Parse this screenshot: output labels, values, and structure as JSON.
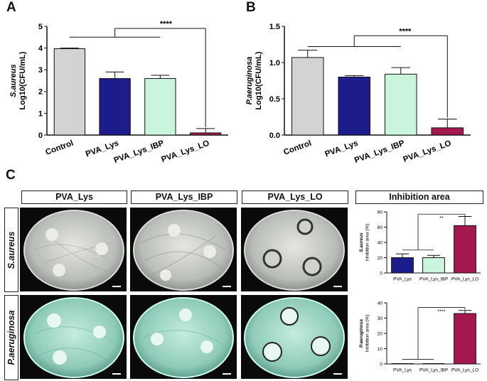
{
  "panels": {
    "a": "A",
    "b": "B",
    "c": "C"
  },
  "significance": {
    "a": "****",
    "b": "****",
    "c_top": "**",
    "c_bottom": "****"
  },
  "figure_c": {
    "columns": [
      "PVA_Lys",
      "PVA_Lys_IBP",
      "PVA_Lys_LO"
    ],
    "inhibition_title": "Inhibition area",
    "rows": [
      "S.aureus",
      "P.aeruginosa"
    ]
  },
  "colors": {
    "control": "#d3d3d3",
    "pva_lys": "#1c1c8c",
    "pva_lys_ibp": "#c8f5dc",
    "pva_lys_lo": "#a3194f",
    "plate_s_aureus": "#c7cbc7",
    "plate_p_aeruginosa": "#9ed4c4"
  },
  "chart_data": [
    {
      "type": "bar",
      "panel": "A",
      "categories": [
        "Control",
        "PVA_Lys",
        "PVA_Lys_IBP",
        "PVA_Lys_LO"
      ],
      "values": [
        3.97,
        2.6,
        2.6,
        0.1
      ],
      "errors": [
        0.03,
        0.3,
        0.15,
        0.2
      ],
      "ylabel_italic": "S.aureus",
      "ylabel": "Log10(CFU/mL)",
      "ylim": [
        0,
        5
      ],
      "yticks": [
        "0",
        "1",
        "2",
        "3",
        "4",
        "5"
      ],
      "tick_values": [
        0,
        1,
        2,
        3,
        4,
        5
      ]
    },
    {
      "type": "bar",
      "panel": "B",
      "categories": [
        "Control",
        "PVA_Lys",
        "PVA_Lys_IBP",
        "PVA_Lys_LO"
      ],
      "values": [
        1.07,
        0.8,
        0.84,
        0.1
      ],
      "errors": [
        0.1,
        0.02,
        0.09,
        0.12
      ],
      "ylabel_italic": "P.aeruginosa",
      "ylabel": "Log10(CFU/mL)",
      "ylim": [
        0,
        1.5
      ],
      "yticks": [
        "0.0",
        "0.5",
        "1.0",
        "1.5"
      ],
      "tick_values": [
        0,
        0.5,
        1,
        1.5
      ]
    },
    {
      "type": "bar",
      "panel": "C-top",
      "categories": [
        "PVA_Lys",
        "PVA_Lys_IBP",
        "PVA_Lys_LO"
      ],
      "values": [
        20,
        20,
        62
      ],
      "errors": [
        5,
        3,
        12
      ],
      "ylabel_italic": "S.aureus",
      "ylabel": "Inhibition area (%)",
      "ylim": [
        0,
        80
      ],
      "yticks": [
        "0",
        "20",
        "40",
        "60",
        "80"
      ],
      "tick_values": [
        0,
        20,
        40,
        60,
        80
      ]
    },
    {
      "type": "bar",
      "panel": "C-bottom",
      "categories": [
        "PVA_Lys",
        "PVA_Lys_IBP",
        "PVA_Lys_LO"
      ],
      "values": [
        0,
        0,
        33
      ],
      "errors": [
        0,
        0,
        2
      ],
      "ylabel_italic": "P.aeruginosa",
      "ylabel": "Inhibition area (%)",
      "ylim": [
        0,
        40
      ],
      "yticks": [
        "0",
        "10",
        "20",
        "30",
        "40"
      ],
      "tick_values": [
        0,
        10,
        20,
        30,
        40
      ]
    }
  ]
}
